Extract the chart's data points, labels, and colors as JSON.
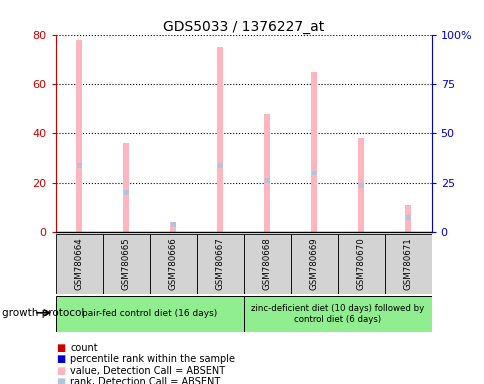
{
  "title": "GDS5033 / 1376227_at",
  "samples": [
    "GSM780664",
    "GSM780665",
    "GSM780666",
    "GSM780667",
    "GSM780668",
    "GSM780669",
    "GSM780670",
    "GSM780671"
  ],
  "value_absent": [
    78,
    36,
    4,
    75,
    48,
    65,
    38,
    11
  ],
  "rank_absent": [
    27,
    16,
    3,
    27,
    21,
    24,
    19,
    6
  ],
  "ylim_left": [
    0,
    80
  ],
  "ylim_right": [
    0,
    100
  ],
  "yticks_left": [
    0,
    20,
    40,
    60,
    80
  ],
  "yticks_right": [
    0,
    25,
    50,
    75,
    100
  ],
  "ytick_labels_right": [
    "0",
    "25",
    "50",
    "75",
    "100%"
  ],
  "group1_label": "pair-fed control diet (16 days)",
  "group2_label": "zinc-deficient diet (10 days) followed by\ncontrol diet (6 days)",
  "group1_color": "#90EE90",
  "group2_color": "#90EE90",
  "value_bar_color": "#FFB6C1",
  "rank_bar_color": "#B0C4DE",
  "legend_count_color": "#CC0000",
  "legend_rank_color": "#0000CC",
  "axis_color_left": "#CC0000",
  "axis_color_right": "#0000CC",
  "sample_box_color": "#D3D3D3",
  "growth_protocol_label": "growth protocol",
  "bar_width": 0.12,
  "rank_bar_width": 0.1,
  "legend_items": [
    {
      "color": "#CC0000",
      "label": "count"
    },
    {
      "color": "#0000CC",
      "label": "percentile rank within the sample"
    },
    {
      "color": "#FFB6C1",
      "label": "value, Detection Call = ABSENT"
    },
    {
      "color": "#B0C4DE",
      "label": "rank, Detection Call = ABSENT"
    }
  ]
}
